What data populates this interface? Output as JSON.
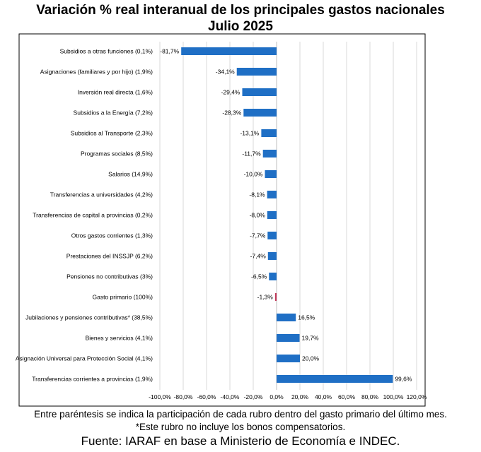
{
  "chart_data": {
    "type": "bar",
    "orientation": "horizontal",
    "title": "Variación % real interanual de los principales gastos nacionales",
    "subtitle": "Julio 2025",
    "categories": [
      "Subsidios a otras funciones (0,1%)",
      "Asignaciones (familiares y por hijo) (1,9%)",
      "Inversión real directa (1,6%)",
      "Subsidios a la Energía (7,2%)",
      "Subsidios al Transporte (2,3%)",
      "Programas sociales (8,5%)",
      "Salarios (14,9%)",
      "Transferencias a universidades (4,2%)",
      "Transferencias de capital a provincias (0,2%)",
      "Otros gastos corrientes (1,3%)",
      "Prestaciones del INSSJP (6,2%)",
      "Pensiones no contributivas (3%)",
      "Gasto primario (100%)",
      "Jubilaciones y pensiones contributivas* (38,5%)",
      "Bienes y servicios (4,1%)",
      "Asignación Universal para Protección Social (4,1%)",
      "Transferencias corrientes a provincias (1,9%)"
    ],
    "values": [
      -81.7,
      -34.1,
      -29.4,
      -28.3,
      -13.1,
      -11.7,
      -10.0,
      -8.1,
      -8.0,
      -7.7,
      -7.4,
      -6.5,
      -1.3,
      16.5,
      19.7,
      20.0,
      99.6
    ],
    "data_labels": [
      "-81,7%",
      "-34,1%",
      "-29,4%",
      "-28,3%",
      "-13,1%",
      "-11,7%",
      "-10,0%",
      "-8,1%",
      "-8,0%",
      "-7,7%",
      "-7,4%",
      "-6,5%",
      "-1,3%",
      "16,5%",
      "19,7%",
      "20,0%",
      "99,6%"
    ],
    "xlim": [
      -100,
      120
    ],
    "xticks": [
      -100,
      -80,
      -60,
      -40,
      -20,
      0,
      20,
      40,
      60,
      80,
      100,
      120
    ],
    "xtick_labels": [
      "-100,0%",
      "-80,0%",
      "-60,0%",
      "-40,0%",
      "-20,0%",
      "0,0%",
      "20,0%",
      "40,0%",
      "60,0%",
      "80,0%",
      "100,0%",
      "120,0%"
    ],
    "grid": "vertical",
    "legend": "none",
    "colors": {
      "bar": "#1f6fc5",
      "highlight": "#c0395a",
      "grid": "#d9d9d9",
      "frame": "#000000"
    },
    "highlight_category": "Gasto primario (100%)"
  },
  "notes": {
    "line1": "Entre paréntesis se indica la participación de cada rubro dentro del gasto primario del último mes.",
    "line2": "*Este rubro no incluye los bonos compensatorios.",
    "source": "Fuente: IARAF en base a Ministerio de Economía e INDEC."
  }
}
